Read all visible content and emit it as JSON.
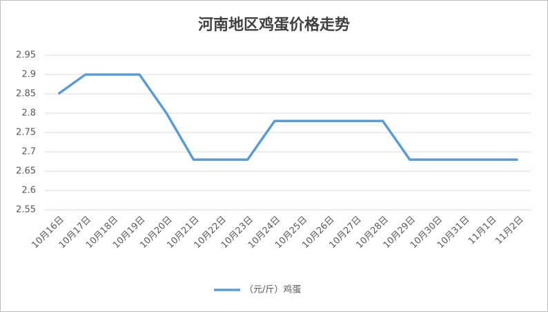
{
  "chart_data": {
    "type": "line",
    "title": "河南地区鸡蛋价格走势",
    "categories": [
      "10月16日",
      "10月17日",
      "10月18日",
      "10月19日",
      "10月20日",
      "10月21日",
      "10月22日",
      "10月23日",
      "10月24日",
      "10月25日",
      "10月26日",
      "10月27日",
      "10月28日",
      "10月29日",
      "10月30日",
      "10月31日",
      "11月1日",
      "11月2日"
    ],
    "series": [
      {
        "name": "（元/斤）鸡蛋",
        "color": "#5b9bd5",
        "values": [
          2.85,
          2.9,
          2.9,
          2.9,
          2.8,
          2.68,
          2.68,
          2.68,
          2.78,
          2.78,
          2.78,
          2.78,
          2.78,
          2.68,
          2.68,
          2.68,
          2.68,
          2.68
        ]
      }
    ],
    "ylim": [
      2.55,
      2.95
    ],
    "yticks": [
      2.55,
      2.6,
      2.65,
      2.7,
      2.75,
      2.8,
      2.85,
      2.9,
      2.95
    ],
    "grid": true,
    "legend": "bottom"
  }
}
